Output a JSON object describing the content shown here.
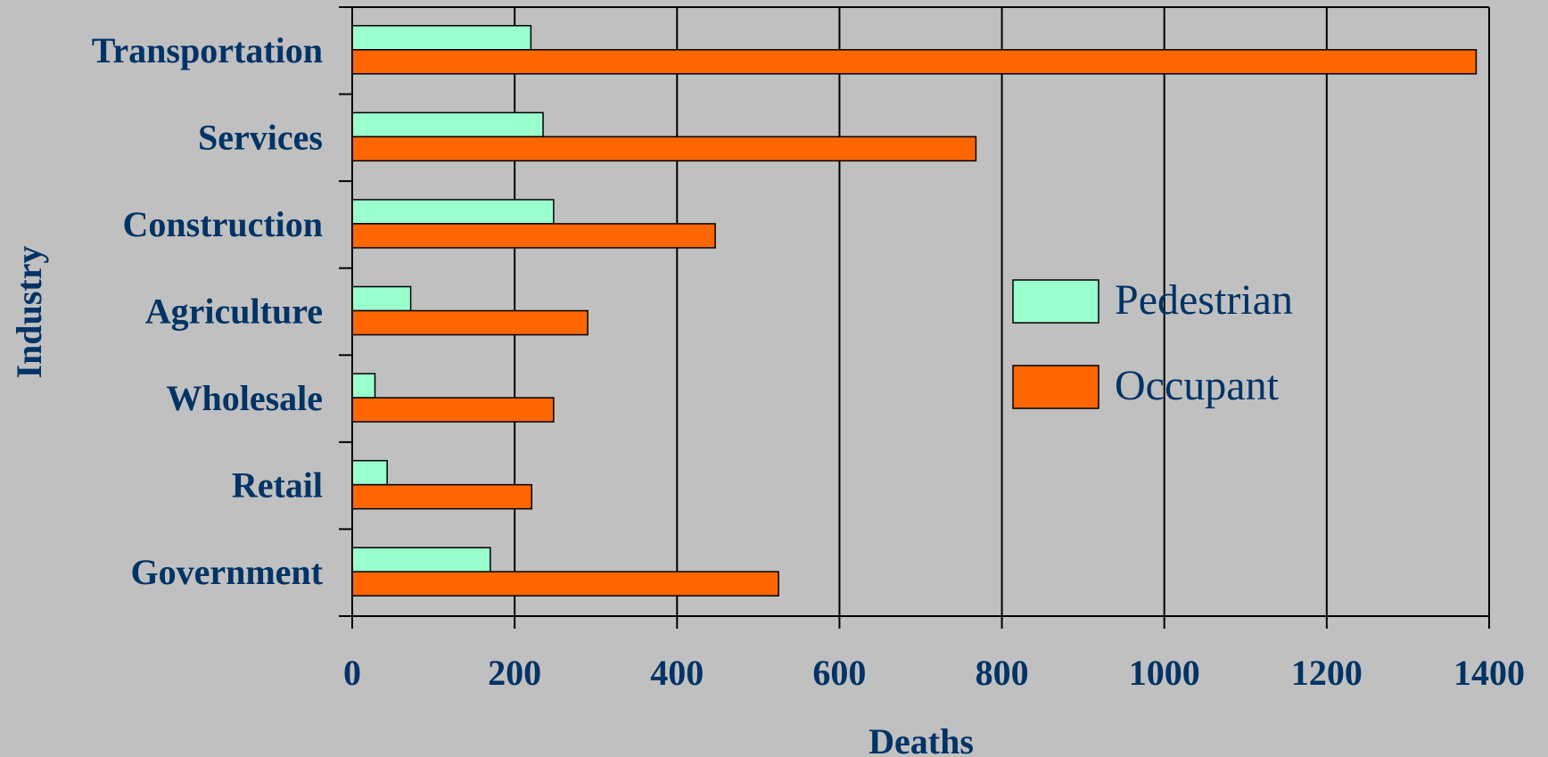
{
  "chart_data": {
    "type": "bar",
    "orientation": "horizontal",
    "categories": [
      "Transportation",
      "Services",
      "Construction",
      "Agriculture",
      "Wholesale",
      "Retail",
      "Government"
    ],
    "series": [
      {
        "name": "Pedestrian",
        "color": "#99ffcc",
        "values": [
          220,
          235,
          248,
          72,
          28,
          43,
          170
        ]
      },
      {
        "name": "Occupant",
        "color": "#ff6600",
        "values": [
          1384,
          768,
          447,
          290,
          248,
          221,
          525
        ]
      }
    ],
    "xlabel": "Deaths",
    "ylabel": "Industry",
    "xlim": [
      0,
      1400
    ],
    "xticks": [
      "0",
      "200",
      "400",
      "600",
      "800",
      "1000",
      "1200",
      "1400"
    ],
    "grid": "vertical",
    "legend_position": "right-middle",
    "background_color": "#c0c0c0",
    "text_color": "#003366"
  }
}
